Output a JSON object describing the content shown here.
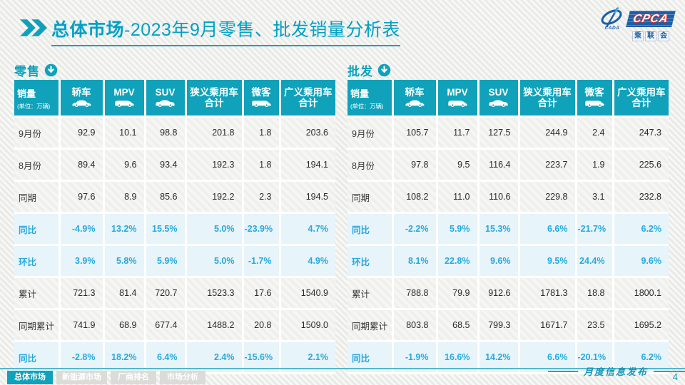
{
  "title": {
    "prefix": "总体市场",
    "rest": "-2023年9月零售、批发销量分析表"
  },
  "logo": {
    "name": "CPCA",
    "cada": "CADA",
    "cn": "乘联会"
  },
  "watermark": "CPCA",
  "tables": [
    {
      "section": "零售",
      "unit_title": "销量",
      "unit_sub": "(单位：万辆)",
      "columns": [
        {
          "label": "轿车",
          "icon": "sedan-icon"
        },
        {
          "label": "MPV",
          "icon": "mpv-icon"
        },
        {
          "label": "SUV",
          "icon": "suv-icon"
        },
        {
          "label": "狭义乘用车",
          "label2": "合计"
        },
        {
          "label": "微客",
          "icon": "microvan-icon"
        },
        {
          "label": "广义乘用车",
          "label2": "合计"
        }
      ],
      "rows": [
        {
          "label": "9月份",
          "type": "num",
          "values": [
            "92.9",
            "10.1",
            "98.8",
            "201.8",
            "1.8",
            "203.6"
          ]
        },
        {
          "label": "8月份",
          "type": "num",
          "values": [
            "89.4",
            "9.6",
            "93.4",
            "192.3",
            "1.8",
            "194.1"
          ]
        },
        {
          "label": "同期",
          "type": "num",
          "values": [
            "97.6",
            "8.9",
            "85.6",
            "192.2",
            "2.3",
            "194.5"
          ]
        },
        {
          "label": "同比",
          "type": "pct",
          "values": [
            "-4.9%",
            "13.2%",
            "15.5%",
            "5.0%",
            "-23.9%",
            "4.7%"
          ]
        },
        {
          "label": "环比",
          "type": "pct",
          "values": [
            "3.9%",
            "5.8%",
            "5.9%",
            "5.0%",
            "-1.7%",
            "4.9%"
          ]
        },
        {
          "label": "累计",
          "type": "num",
          "values": [
            "721.3",
            "81.4",
            "720.7",
            "1523.3",
            "17.6",
            "1540.9"
          ]
        },
        {
          "label": "同期累计",
          "type": "num",
          "values": [
            "741.9",
            "68.9",
            "677.4",
            "1488.2",
            "20.8",
            "1509.0"
          ]
        },
        {
          "label": "同比",
          "type": "pct",
          "values": [
            "-2.8%",
            "18.2%",
            "6.4%",
            "2.4%",
            "-15.6%",
            "2.1%"
          ]
        }
      ]
    },
    {
      "section": "批发",
      "unit_title": "销量",
      "unit_sub": "(单位：万辆)",
      "columns": [
        {
          "label": "轿车",
          "icon": "sedan-icon"
        },
        {
          "label": "MPV",
          "icon": "mpv-icon"
        },
        {
          "label": "SUV",
          "icon": "suv-icon"
        },
        {
          "label": "狭义乘用车",
          "label2": "合计"
        },
        {
          "label": "微客",
          "icon": "microvan-icon"
        },
        {
          "label": "广义乘用车",
          "label2": "合计"
        }
      ],
      "rows": [
        {
          "label": "9月份",
          "type": "num",
          "values": [
            "105.7",
            "11.7",
            "127.5",
            "244.9",
            "2.4",
            "247.3"
          ]
        },
        {
          "label": "8月份",
          "type": "num",
          "values": [
            "97.8",
            "9.5",
            "116.4",
            "223.7",
            "1.9",
            "225.6"
          ]
        },
        {
          "label": "同期",
          "type": "num",
          "values": [
            "108.2",
            "11.0",
            "110.6",
            "229.8",
            "3.1",
            "232.8"
          ]
        },
        {
          "label": "同比",
          "type": "pct",
          "values": [
            "-2.2%",
            "5.9%",
            "15.3%",
            "6.6%",
            "-21.7%",
            "6.2%"
          ]
        },
        {
          "label": "环比",
          "type": "pct",
          "values": [
            "8.1%",
            "22.8%",
            "9.6%",
            "9.5%",
            "24.4%",
            "9.6%"
          ]
        },
        {
          "label": "累计",
          "type": "num",
          "values": [
            "788.8",
            "79.9",
            "912.6",
            "1781.3",
            "18.8",
            "1800.1"
          ]
        },
        {
          "label": "同期累计",
          "type": "num",
          "values": [
            "803.8",
            "68.5",
            "799.3",
            "1671.7",
            "23.5",
            "1695.2"
          ]
        },
        {
          "label": "同比",
          "type": "pct",
          "values": [
            "-1.9%",
            "16.6%",
            "14.2%",
            "6.6%",
            "-20.1%",
            "6.2%"
          ]
        }
      ]
    }
  ],
  "footer": {
    "tabs": [
      {
        "label": "总体市场",
        "active": true
      },
      {
        "label": "新能源市场",
        "active": false
      },
      {
        "label": "厂商排名",
        "active": false
      },
      {
        "label": "市场分析",
        "active": false
      }
    ],
    "publication": "月度信息发布",
    "page_number": "4"
  },
  "colors": {
    "teal": "#0FA2BA",
    "title_teal": "#00A1C5",
    "percent_blue": "#29A9DE",
    "percent_row_bg": "#E7F4FA",
    "logo_blue": "#1D5FA8",
    "logo_red": "#CE3333"
  }
}
